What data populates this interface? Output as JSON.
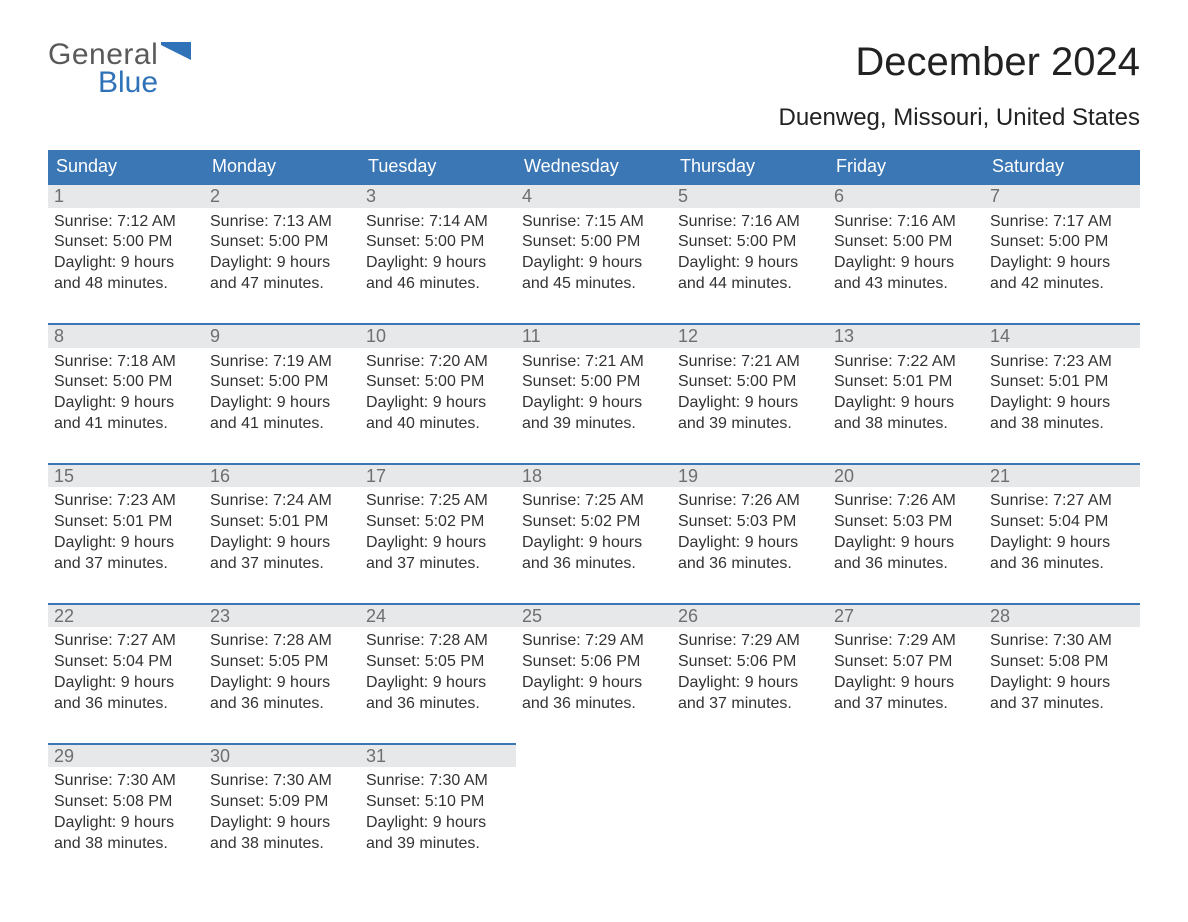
{
  "logo": {
    "top": "General",
    "bottom": "Blue",
    "flag_color": "#2f72b8"
  },
  "title": "December 2024",
  "subtitle": "Duenweg, Missouri, United States",
  "colors": {
    "header_bg": "#3b77b5",
    "header_text": "#ffffff",
    "daynum_bg": "#e7e8e9",
    "daynum_text": "#6d6f70",
    "body_text": "#333333",
    "accent_border": "#3b77b5",
    "page_bg": "#ffffff"
  },
  "typography": {
    "title_fontsize": 40,
    "subtitle_fontsize": 24,
    "dow_fontsize": 18,
    "daynum_fontsize": 18,
    "body_fontsize": 16
  },
  "days_of_week": [
    "Sunday",
    "Monday",
    "Tuesday",
    "Wednesday",
    "Thursday",
    "Friday",
    "Saturday"
  ],
  "weeks": [
    [
      {
        "n": "1",
        "sunrise": "Sunrise: 7:12 AM",
        "sunset": "Sunset: 5:00 PM",
        "d1": "Daylight: 9 hours",
        "d2": "and 48 minutes."
      },
      {
        "n": "2",
        "sunrise": "Sunrise: 7:13 AM",
        "sunset": "Sunset: 5:00 PM",
        "d1": "Daylight: 9 hours",
        "d2": "and 47 minutes."
      },
      {
        "n": "3",
        "sunrise": "Sunrise: 7:14 AM",
        "sunset": "Sunset: 5:00 PM",
        "d1": "Daylight: 9 hours",
        "d2": "and 46 minutes."
      },
      {
        "n": "4",
        "sunrise": "Sunrise: 7:15 AM",
        "sunset": "Sunset: 5:00 PM",
        "d1": "Daylight: 9 hours",
        "d2": "and 45 minutes."
      },
      {
        "n": "5",
        "sunrise": "Sunrise: 7:16 AM",
        "sunset": "Sunset: 5:00 PM",
        "d1": "Daylight: 9 hours",
        "d2": "and 44 minutes."
      },
      {
        "n": "6",
        "sunrise": "Sunrise: 7:16 AM",
        "sunset": "Sunset: 5:00 PM",
        "d1": "Daylight: 9 hours",
        "d2": "and 43 minutes."
      },
      {
        "n": "7",
        "sunrise": "Sunrise: 7:17 AM",
        "sunset": "Sunset: 5:00 PM",
        "d1": "Daylight: 9 hours",
        "d2": "and 42 minutes."
      }
    ],
    [
      {
        "n": "8",
        "sunrise": "Sunrise: 7:18 AM",
        "sunset": "Sunset: 5:00 PM",
        "d1": "Daylight: 9 hours",
        "d2": "and 41 minutes."
      },
      {
        "n": "9",
        "sunrise": "Sunrise: 7:19 AM",
        "sunset": "Sunset: 5:00 PM",
        "d1": "Daylight: 9 hours",
        "d2": "and 41 minutes."
      },
      {
        "n": "10",
        "sunrise": "Sunrise: 7:20 AM",
        "sunset": "Sunset: 5:00 PM",
        "d1": "Daylight: 9 hours",
        "d2": "and 40 minutes."
      },
      {
        "n": "11",
        "sunrise": "Sunrise: 7:21 AM",
        "sunset": "Sunset: 5:00 PM",
        "d1": "Daylight: 9 hours",
        "d2": "and 39 minutes."
      },
      {
        "n": "12",
        "sunrise": "Sunrise: 7:21 AM",
        "sunset": "Sunset: 5:00 PM",
        "d1": "Daylight: 9 hours",
        "d2": "and 39 minutes."
      },
      {
        "n": "13",
        "sunrise": "Sunrise: 7:22 AM",
        "sunset": "Sunset: 5:01 PM",
        "d1": "Daylight: 9 hours",
        "d2": "and 38 minutes."
      },
      {
        "n": "14",
        "sunrise": "Sunrise: 7:23 AM",
        "sunset": "Sunset: 5:01 PM",
        "d1": "Daylight: 9 hours",
        "d2": "and 38 minutes."
      }
    ],
    [
      {
        "n": "15",
        "sunrise": "Sunrise: 7:23 AM",
        "sunset": "Sunset: 5:01 PM",
        "d1": "Daylight: 9 hours",
        "d2": "and 37 minutes."
      },
      {
        "n": "16",
        "sunrise": "Sunrise: 7:24 AM",
        "sunset": "Sunset: 5:01 PM",
        "d1": "Daylight: 9 hours",
        "d2": "and 37 minutes."
      },
      {
        "n": "17",
        "sunrise": "Sunrise: 7:25 AM",
        "sunset": "Sunset: 5:02 PM",
        "d1": "Daylight: 9 hours",
        "d2": "and 37 minutes."
      },
      {
        "n": "18",
        "sunrise": "Sunrise: 7:25 AM",
        "sunset": "Sunset: 5:02 PM",
        "d1": "Daylight: 9 hours",
        "d2": "and 36 minutes."
      },
      {
        "n": "19",
        "sunrise": "Sunrise: 7:26 AM",
        "sunset": "Sunset: 5:03 PM",
        "d1": "Daylight: 9 hours",
        "d2": "and 36 minutes."
      },
      {
        "n": "20",
        "sunrise": "Sunrise: 7:26 AM",
        "sunset": "Sunset: 5:03 PM",
        "d1": "Daylight: 9 hours",
        "d2": "and 36 minutes."
      },
      {
        "n": "21",
        "sunrise": "Sunrise: 7:27 AM",
        "sunset": "Sunset: 5:04 PM",
        "d1": "Daylight: 9 hours",
        "d2": "and 36 minutes."
      }
    ],
    [
      {
        "n": "22",
        "sunrise": "Sunrise: 7:27 AM",
        "sunset": "Sunset: 5:04 PM",
        "d1": "Daylight: 9 hours",
        "d2": "and 36 minutes."
      },
      {
        "n": "23",
        "sunrise": "Sunrise: 7:28 AM",
        "sunset": "Sunset: 5:05 PM",
        "d1": "Daylight: 9 hours",
        "d2": "and 36 minutes."
      },
      {
        "n": "24",
        "sunrise": "Sunrise: 7:28 AM",
        "sunset": "Sunset: 5:05 PM",
        "d1": "Daylight: 9 hours",
        "d2": "and 36 minutes."
      },
      {
        "n": "25",
        "sunrise": "Sunrise: 7:29 AM",
        "sunset": "Sunset: 5:06 PM",
        "d1": "Daylight: 9 hours",
        "d2": "and 36 minutes."
      },
      {
        "n": "26",
        "sunrise": "Sunrise: 7:29 AM",
        "sunset": "Sunset: 5:06 PM",
        "d1": "Daylight: 9 hours",
        "d2": "and 37 minutes."
      },
      {
        "n": "27",
        "sunrise": "Sunrise: 7:29 AM",
        "sunset": "Sunset: 5:07 PM",
        "d1": "Daylight: 9 hours",
        "d2": "and 37 minutes."
      },
      {
        "n": "28",
        "sunrise": "Sunrise: 7:30 AM",
        "sunset": "Sunset: 5:08 PM",
        "d1": "Daylight: 9 hours",
        "d2": "and 37 minutes."
      }
    ],
    [
      {
        "n": "29",
        "sunrise": "Sunrise: 7:30 AM",
        "sunset": "Sunset: 5:08 PM",
        "d1": "Daylight: 9 hours",
        "d2": "and 38 minutes."
      },
      {
        "n": "30",
        "sunrise": "Sunrise: 7:30 AM",
        "sunset": "Sunset: 5:09 PM",
        "d1": "Daylight: 9 hours",
        "d2": "and 38 minutes."
      },
      {
        "n": "31",
        "sunrise": "Sunrise: 7:30 AM",
        "sunset": "Sunset: 5:10 PM",
        "d1": "Daylight: 9 hours",
        "d2": "and 39 minutes."
      },
      {
        "empty": true
      },
      {
        "empty": true
      },
      {
        "empty": true
      },
      {
        "empty": true
      }
    ]
  ]
}
